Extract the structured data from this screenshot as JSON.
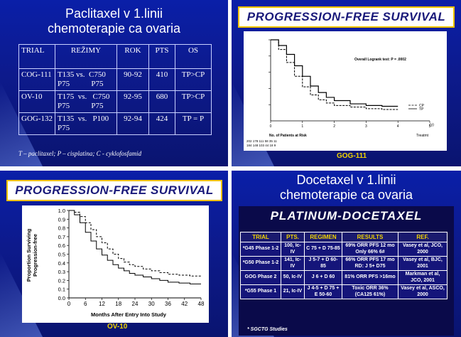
{
  "q1": {
    "title_line1": "Paclitaxel v 1.linii",
    "title_line2": "chemoterapie ca ovaria",
    "headers": [
      "TRIAL",
      "REŽIMY",
      "ROK",
      "PTS",
      "OS"
    ],
    "rows": [
      {
        "trial": "COG-111",
        "regimen_a": "T135 vs.  C750",
        "regimen_b": "P75           P75",
        "year": "90-92",
        "pts": "410",
        "os": "TP>CP"
      },
      {
        "trial": "OV-10",
        "regimen_a": "T175  vs.   C750",
        "regimen_b": "P75           P75",
        "year": "92-95",
        "pts": "680",
        "os": "TP>CP"
      },
      {
        "trial": "GOG-132",
        "regimen_a": "T135  vs.   P100",
        "regimen_b": "P75",
        "year": "92-94",
        "pts": "424",
        "os": "TP = P"
      }
    ],
    "footnote": "T – paclitaxel; P – cisplatina; C - cyklofosfamid"
  },
  "q2": {
    "banner": "PROGRESSION-FREE SURVIVAL",
    "logrank": "Overall Logrank test: P = .0002",
    "risk_label": "No. of Patients at Risk",
    "legend": [
      "CP",
      "TP"
    ],
    "axis_unit": "(y)",
    "x_label": "Treatmt",
    "caption": "GOG-111",
    "risk_rows": [
      "202 178 111 58 35 11",
      "184 148 103 44 18 9"
    ]
  },
  "q3": {
    "banner": "PROGRESSION-FREE SURVIVAL",
    "ylabel_line1": "Proportion Surviving",
    "ylabel_line2": "Progression-free",
    "xlabel": "Months After Entry Into Study",
    "caption": "OV-10"
  },
  "q4": {
    "title_line1": "Docetaxel v 1.linii",
    "title_line2": "chemoterapie ca ovaria",
    "banner": "PLATINUM-DOCETAXEL",
    "headers": [
      "TRIAL",
      "PTS.",
      "REGIMEN",
      "RESULTS",
      "REF."
    ],
    "rows": [
      {
        "trial": "*G45 Phase 1-2",
        "pts": "100, Ic-IV",
        "regimen": "C 75 + D 75-85",
        "results": "69% ORR PFS 12 mo Only 66% 6#",
        "ref": "Vasey et al, JCO, 2000"
      },
      {
        "trial": "*G50 Phase 1-2",
        "pts": "141, Ic-IV",
        "regimen": "J 5-7 + D 60-85",
        "results": "66% ORR PFS 17 mo RD: J 5+ D75",
        "ref": "Vasey et al, BJC, 2001"
      },
      {
        "trial": "GOG Phase 2",
        "pts": "50, Ic-IV",
        "regimen": "J 6 + D 60",
        "results": "81% ORR PFS >16mo",
        "ref": "Markman et al, JCO, 2001"
      },
      {
        "trial": "*G55 Phase 1",
        "pts": "21, Ic-IV",
        "regimen": "J 4-5 + D 75 + E 50-60",
        "results": "Toxic ORR 36% (CA125 61%)",
        "ref": "Vasey et al, ASCO, 2000"
      }
    ],
    "footnote": "* SGCTG Studies"
  },
  "chart_data": [
    {
      "type": "line",
      "title": "PROGRESSION-FREE SURVIVAL",
      "xlabel": "",
      "ylabel": "",
      "x_ticks": [
        "0",
        "1",
        "2",
        "3",
        "4",
        "5"
      ],
      "xlim": [
        0,
        5
      ],
      "ylim": [
        0,
        100
      ],
      "y_ticks": [
        "100",
        "80",
        "60",
        "40",
        "20"
      ],
      "series": [
        {
          "name": "CP",
          "x": [
            0,
            0.25,
            0.5,
            0.75,
            1,
            1.25,
            1.5,
            1.75,
            2,
            2.5,
            3,
            3.5,
            4
          ],
          "y": [
            100,
            88,
            72,
            55,
            42,
            32,
            26,
            22,
            19,
            17,
            15,
            14,
            14
          ]
        },
        {
          "name": "TP",
          "x": [
            0,
            0.25,
            0.5,
            0.75,
            1,
            1.25,
            1.5,
            1.75,
            2,
            2.5,
            3,
            3.5,
            4
          ],
          "y": [
            100,
            93,
            82,
            68,
            55,
            43,
            35,
            29,
            25,
            21,
            19,
            18,
            18
          ]
        }
      ]
    },
    {
      "type": "line",
      "title": "PROGRESSION-FREE SURVIVAL",
      "xlabel": "Months After Entry Into Study",
      "ylabel": "Proportion Surviving Progression-free",
      "x_ticks": [
        "0",
        "6",
        "12",
        "18",
        "24",
        "30",
        "36",
        "42",
        "48"
      ],
      "y_ticks": [
        "1.0",
        "0.9",
        "0.8",
        "0.7",
        "0.6",
        "0.5",
        "0.4",
        "0.3",
        "0.2",
        "0.1",
        "0.0"
      ],
      "xlim": [
        0,
        48
      ],
      "ylim": [
        0,
        1
      ],
      "series": [
        {
          "x": [
            0,
            2,
            4,
            6,
            8,
            10,
            12,
            14,
            16,
            18,
            20,
            22,
            24,
            27,
            30,
            33,
            36,
            40,
            44,
            48
          ],
          "y": [
            1.0,
            0.95,
            0.86,
            0.75,
            0.65,
            0.56,
            0.49,
            0.43,
            0.38,
            0.34,
            0.31,
            0.28,
            0.26,
            0.24,
            0.22,
            0.2,
            0.18,
            0.17,
            0.16,
            0.16
          ],
          "style": "solid"
        },
        {
          "x": [
            0,
            2,
            4,
            6,
            8,
            10,
            12,
            14,
            16,
            18,
            20,
            22,
            24,
            27,
            30,
            33,
            36,
            40,
            44,
            48
          ],
          "y": [
            1.0,
            0.98,
            0.93,
            0.86,
            0.78,
            0.7,
            0.63,
            0.56,
            0.5,
            0.45,
            0.41,
            0.38,
            0.36,
            0.33,
            0.31,
            0.29,
            0.27,
            0.26,
            0.25,
            0.25
          ],
          "style": "dashed"
        }
      ]
    }
  ]
}
